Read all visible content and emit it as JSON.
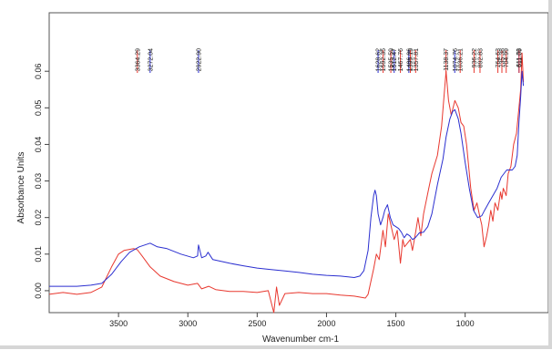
{
  "chart_data": {
    "type": "line",
    "xlabel": "Wavenumber cm-1",
    "ylabel": "Absorbance Units",
    "xlim": [
      4000,
      400
    ],
    "ylim": [
      -0.006,
      0.076
    ],
    "x_ticks": [
      3500,
      3000,
      2500,
      2000,
      1500,
      1000
    ],
    "y_ticks": [
      0.0,
      0.01,
      0.02,
      0.03,
      0.04,
      0.05,
      0.06
    ],
    "y_tick_labels": [
      "0.00",
      "0.01",
      "0.02",
      "0.03",
      "0.04",
      "0.05",
      "0.06"
    ],
    "grid": false,
    "series": [
      {
        "color": "#e8382f",
        "points": [
          [
            4000,
            -0.001
          ],
          [
            3900,
            -0.0005
          ],
          [
            3800,
            -0.001
          ],
          [
            3700,
            -0.0005
          ],
          [
            3620,
            0.001
          ],
          [
            3550,
            0.0065
          ],
          [
            3500,
            0.01
          ],
          [
            3460,
            0.011
          ],
          [
            3390,
            0.0115
          ],
          [
            3364,
            0.0112
          ],
          [
            3330,
            0.0095
          ],
          [
            3272,
            0.0065
          ],
          [
            3200,
            0.004
          ],
          [
            3100,
            0.0025
          ],
          [
            3000,
            0.0015
          ],
          [
            2930,
            0.002
          ],
          [
            2900,
            0.0005
          ],
          [
            2850,
            0.0012
          ],
          [
            2800,
            0.0003
          ],
          [
            2700,
            -0.0002
          ],
          [
            2600,
            -0.0002
          ],
          [
            2500,
            -0.0005
          ],
          [
            2420,
            0.0
          ],
          [
            2380,
            -0.006
          ],
          [
            2360,
            0.001
          ],
          [
            2340,
            -0.004
          ],
          [
            2300,
            -0.0008
          ],
          [
            2200,
            -0.0005
          ],
          [
            2100,
            -0.0008
          ],
          [
            2000,
            -0.0008
          ],
          [
            1900,
            -0.0012
          ],
          [
            1800,
            -0.0015
          ],
          [
            1720,
            -0.002
          ],
          [
            1700,
            -0.001
          ],
          [
            1660,
            0.006
          ],
          [
            1640,
            0.01
          ],
          [
            1620,
            0.0085
          ],
          [
            1593,
            0.0165
          ],
          [
            1575,
            0.012
          ],
          [
            1555,
            0.021
          ],
          [
            1536,
            0.018
          ],
          [
            1512,
            0.014
          ],
          [
            1490,
            0.0165
          ],
          [
            1467,
            0.0075
          ],
          [
            1450,
            0.014
          ],
          [
            1437,
            0.012
          ],
          [
            1406,
            0.0135
          ],
          [
            1395,
            0.014
          ],
          [
            1380,
            0.011
          ],
          [
            1357,
            0.016
          ],
          [
            1340,
            0.02
          ],
          [
            1320,
            0.015
          ],
          [
            1300,
            0.021
          ],
          [
            1265,
            0.0275
          ],
          [
            1240,
            0.032
          ],
          [
            1200,
            0.037
          ],
          [
            1170,
            0.045
          ],
          [
            1138,
            0.06
          ],
          [
            1120,
            0.052
          ],
          [
            1100,
            0.048
          ],
          [
            1074,
            0.052
          ],
          [
            1050,
            0.05
          ],
          [
            1030,
            0.046
          ],
          [
            1010,
            0.045
          ],
          [
            990,
            0.04
          ],
          [
            960,
            0.028
          ],
          [
            936,
            0.022
          ],
          [
            915,
            0.024
          ],
          [
            893,
            0.02
          ],
          [
            880,
            0.018
          ],
          [
            864,
            0.012
          ],
          [
            845,
            0.015
          ],
          [
            830,
            0.018
          ],
          [
            815,
            0.022
          ],
          [
            800,
            0.019
          ],
          [
            785,
            0.024
          ],
          [
            764,
            0.022
          ],
          [
            745,
            0.027
          ],
          [
            735,
            0.025
          ],
          [
            725,
            0.028
          ],
          [
            704,
            0.026
          ],
          [
            690,
            0.032
          ],
          [
            670,
            0.034
          ],
          [
            650,
            0.04
          ],
          [
            630,
            0.043
          ],
          [
            612,
            0.05
          ],
          [
            600,
            0.055
          ],
          [
            590,
            0.065
          ],
          [
            580,
            0.057
          ]
        ]
      },
      {
        "color": "#2b2fd0",
        "points": [
          [
            4000,
            0.0012
          ],
          [
            3800,
            0.0012
          ],
          [
            3700,
            0.0015
          ],
          [
            3620,
            0.002
          ],
          [
            3550,
            0.0045
          ],
          [
            3480,
            0.008
          ],
          [
            3420,
            0.0105
          ],
          [
            3350,
            0.012
          ],
          [
            3272,
            0.013
          ],
          [
            3220,
            0.012
          ],
          [
            3150,
            0.0115
          ],
          [
            3050,
            0.01
          ],
          [
            2960,
            0.009
          ],
          [
            2930,
            0.0095
          ],
          [
            2923,
            0.0125
          ],
          [
            2900,
            0.009
          ],
          [
            2870,
            0.0095
          ],
          [
            2854,
            0.0105
          ],
          [
            2820,
            0.0085
          ],
          [
            2700,
            0.0075
          ],
          [
            2600,
            0.0068
          ],
          [
            2500,
            0.0062
          ],
          [
            2400,
            0.0058
          ],
          [
            2300,
            0.0054
          ],
          [
            2200,
            0.005
          ],
          [
            2100,
            0.0045
          ],
          [
            2000,
            0.0042
          ],
          [
            1900,
            0.004
          ],
          [
            1800,
            0.0036
          ],
          [
            1760,
            0.004
          ],
          [
            1730,
            0.0055
          ],
          [
            1700,
            0.011
          ],
          [
            1680,
            0.02
          ],
          [
            1660,
            0.026
          ],
          [
            1650,
            0.0275
          ],
          [
            1640,
            0.026
          ],
          [
            1628,
            0.021
          ],
          [
            1610,
            0.018
          ],
          [
            1593,
            0.02
          ],
          [
            1580,
            0.022
          ],
          [
            1560,
            0.0235
          ],
          [
            1540,
            0.02
          ],
          [
            1520,
            0.018
          ],
          [
            1500,
            0.0175
          ],
          [
            1480,
            0.017
          ],
          [
            1460,
            0.016
          ],
          [
            1440,
            0.0145
          ],
          [
            1420,
            0.0155
          ],
          [
            1400,
            0.015
          ],
          [
            1380,
            0.014
          ],
          [
            1360,
            0.0145
          ],
          [
            1330,
            0.0158
          ],
          [
            1300,
            0.016
          ],
          [
            1270,
            0.0175
          ],
          [
            1240,
            0.021
          ],
          [
            1200,
            0.029
          ],
          [
            1160,
            0.036
          ],
          [
            1138,
            0.042
          ],
          [
            1110,
            0.047
          ],
          [
            1090,
            0.049
          ],
          [
            1074,
            0.0495
          ],
          [
            1050,
            0.047
          ],
          [
            1030,
            0.043
          ],
          [
            1000,
            0.035
          ],
          [
            970,
            0.028
          ],
          [
            940,
            0.022
          ],
          [
            910,
            0.02
          ],
          [
            880,
            0.0205
          ],
          [
            860,
            0.022
          ],
          [
            830,
            0.024
          ],
          [
            800,
            0.026
          ],
          [
            770,
            0.028
          ],
          [
            740,
            0.031
          ],
          [
            700,
            0.033
          ],
          [
            660,
            0.033
          ],
          [
            640,
            0.034
          ],
          [
            625,
            0.037
          ],
          [
            612,
            0.046
          ],
          [
            600,
            0.053
          ],
          [
            590,
            0.06
          ],
          [
            580,
            0.056
          ]
        ]
      }
    ],
    "peak_labels": [
      {
        "label": "3364.29",
        "x": 3364,
        "color": "#e8382f"
      },
      {
        "label": "3272.04",
        "x": 3272,
        "color": "#2b2fd0"
      },
      {
        "label": "2922.90",
        "x": 2923,
        "color": "#2b2fd0"
      },
      {
        "label": "1628.62",
        "x": 1628,
        "color": "#2b2fd0"
      },
      {
        "label": "1592.35",
        "x": 1592,
        "color": "#e8382f"
      },
      {
        "label": "1535.59",
        "x": 1536,
        "color": "#e8382f"
      },
      {
        "label": "1512.47",
        "x": 1512,
        "color": "#2b2fd0"
      },
      {
        "label": "1467.76",
        "x": 1467,
        "color": "#e8382f"
      },
      {
        "label": "1406.06",
        "x": 1406,
        "color": "#2b2fd0"
      },
      {
        "label": "1395.15",
        "x": 1395,
        "color": "#e8382f"
      },
      {
        "label": "1357.81",
        "x": 1357,
        "color": "#e8382f"
      },
      {
        "label": "1138.37",
        "x": 1138,
        "color": "#e8382f"
      },
      {
        "label": "1074.76",
        "x": 1075,
        "color": "#2b2fd0"
      },
      {
        "label": "1036.21",
        "x": 1036,
        "color": "#e8382f"
      },
      {
        "label": "936.22",
        "x": 936,
        "color": "#e8382f"
      },
      {
        "label": "892.83",
        "x": 893,
        "color": "#e8382f"
      },
      {
        "label": "764.63",
        "x": 764,
        "color": "#e8382f"
      },
      {
        "label": "735.38",
        "x": 735,
        "color": "#e8382f"
      },
      {
        "label": "704.99",
        "x": 704,
        "color": "#e8382f"
      },
      {
        "label": "611.73",
        "x": 612,
        "color": "#2b2fd0"
      },
      {
        "label": "611.09",
        "x": 611,
        "color": "#e8382f"
      }
    ]
  }
}
